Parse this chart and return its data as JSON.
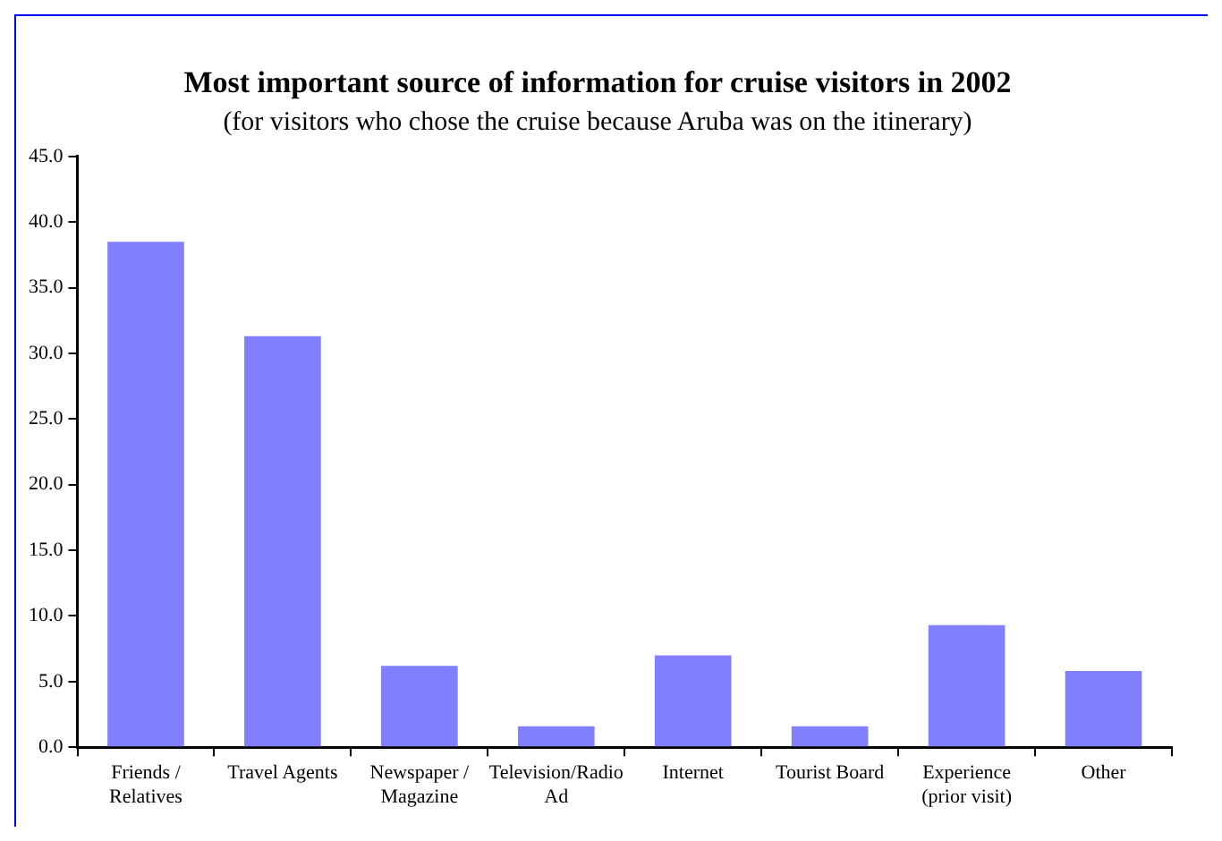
{
  "chart_data": {
    "type": "bar",
    "title": "Most important source of information for cruise visitors in 2002",
    "subtitle": "(for visitors who chose the cruise because Aruba was on the itinerary)",
    "categories": [
      "Friends / Relatives",
      "Travel Agents",
      "Newspaper / Magazine",
      "Television/Radio Ad",
      "Internet",
      "Tourist Board",
      "Experience (prior visit)",
      "Other"
    ],
    "values": [
      38.5,
      31.3,
      6.2,
      1.6,
      7.0,
      1.6,
      9.3,
      5.8
    ],
    "color": "#8080ff",
    "ylim": [
      0,
      45
    ],
    "yticks": [
      {
        "value": 0,
        "label": "0.0"
      },
      {
        "value": 5,
        "label": "5.0"
      },
      {
        "value": 10,
        "label": "10.0"
      },
      {
        "value": 15,
        "label": "15.0"
      },
      {
        "value": 20,
        "label": "20.0"
      },
      {
        "value": 25,
        "label": "25.0"
      },
      {
        "value": 30,
        "label": "30.0"
      },
      {
        "value": 35,
        "label": "35.0"
      },
      {
        "value": 40,
        "label": "40.0"
      },
      {
        "value": 45,
        "label": "45.0"
      }
    ],
    "grid": false,
    "legend": false
  }
}
